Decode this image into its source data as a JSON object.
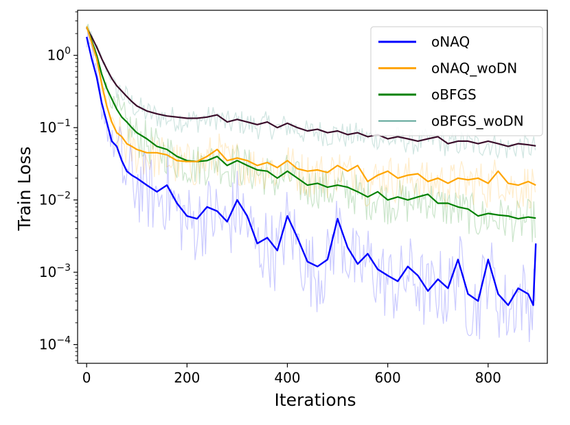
{
  "chart_data": {
    "type": "line",
    "title": "",
    "xlabel": "Iterations",
    "ylabel": "Train Loss",
    "yscale": "log",
    "xlim": [
      -18,
      918
    ],
    "ylim": [
      5.5e-05,
      4.2
    ],
    "x_ticks": [
      0,
      200,
      400,
      600,
      800
    ],
    "x_tick_labels": [
      "0",
      "200",
      "400",
      "600",
      "800"
    ],
    "y_ticks": [
      1,
      0.1,
      0.01,
      0.001,
      0.0001
    ],
    "y_tick_labels": [
      {
        "base": "10",
        "exp": "0"
      },
      {
        "base": "10",
        "exp": "−1"
      },
      {
        "base": "10",
        "exp": "−2"
      },
      {
        "base": "10",
        "exp": "−3"
      },
      {
        "base": "10",
        "exp": "−4"
      }
    ],
    "grid": false,
    "legend_position": "top-right",
    "series": [
      {
        "name": "oNAQ",
        "color": "#0000ff",
        "x": [
          0,
          10,
          20,
          30,
          40,
          50,
          60,
          70,
          80,
          90,
          100,
          120,
          140,
          160,
          180,
          200,
          220,
          240,
          260,
          280,
          300,
          320,
          340,
          360,
          380,
          400,
          420,
          440,
          460,
          480,
          500,
          520,
          540,
          560,
          580,
          600,
          620,
          640,
          660,
          680,
          700,
          720,
          740,
          760,
          780,
          800,
          820,
          840,
          860,
          880,
          890,
          895
        ],
        "y": [
          1.8,
          0.9,
          0.5,
          0.22,
          0.12,
          0.065,
          0.055,
          0.035,
          0.025,
          0.022,
          0.02,
          0.016,
          0.013,
          0.016,
          0.009,
          0.006,
          0.0055,
          0.008,
          0.007,
          0.005,
          0.01,
          0.006,
          0.0025,
          0.003,
          0.002,
          0.006,
          0.003,
          0.0014,
          0.0012,
          0.0015,
          0.0055,
          0.0022,
          0.0013,
          0.0018,
          0.0011,
          0.0009,
          0.00075,
          0.0012,
          0.0009,
          0.00055,
          0.0008,
          0.0006,
          0.0015,
          0.0005,
          0.0004,
          0.0015,
          0.0005,
          0.00035,
          0.0006,
          0.0005,
          0.00035,
          0.0025
        ]
      },
      {
        "name": "oNAQ_woDN",
        "color": "#ffa500",
        "x": [
          0,
          10,
          20,
          30,
          40,
          50,
          60,
          70,
          80,
          90,
          100,
          120,
          140,
          160,
          180,
          200,
          220,
          240,
          260,
          280,
          300,
          320,
          340,
          360,
          380,
          400,
          420,
          440,
          460,
          480,
          500,
          520,
          540,
          560,
          580,
          600,
          620,
          640,
          660,
          680,
          700,
          720,
          740,
          760,
          780,
          800,
          820,
          840,
          860,
          880,
          895
        ],
        "y": [
          2.5,
          1.5,
          0.9,
          0.4,
          0.2,
          0.12,
          0.085,
          0.075,
          0.06,
          0.055,
          0.05,
          0.045,
          0.045,
          0.042,
          0.035,
          0.034,
          0.034,
          0.04,
          0.05,
          0.035,
          0.038,
          0.035,
          0.03,
          0.033,
          0.028,
          0.035,
          0.027,
          0.025,
          0.026,
          0.024,
          0.03,
          0.025,
          0.03,
          0.018,
          0.022,
          0.025,
          0.02,
          0.022,
          0.023,
          0.018,
          0.02,
          0.017,
          0.02,
          0.019,
          0.02,
          0.017,
          0.025,
          0.017,
          0.016,
          0.018,
          0.016
        ]
      },
      {
        "name": "oBFGS",
        "color": "#008000",
        "x": [
          0,
          10,
          20,
          30,
          40,
          50,
          60,
          70,
          80,
          90,
          100,
          120,
          140,
          160,
          180,
          200,
          220,
          240,
          260,
          280,
          300,
          320,
          340,
          360,
          380,
          400,
          420,
          440,
          460,
          480,
          500,
          520,
          540,
          560,
          580,
          600,
          620,
          640,
          660,
          680,
          700,
          720,
          740,
          760,
          780,
          800,
          820,
          840,
          860,
          880,
          895
        ],
        "y": [
          2.5,
          1.6,
          1.0,
          0.55,
          0.35,
          0.25,
          0.18,
          0.14,
          0.12,
          0.1,
          0.085,
          0.07,
          0.055,
          0.05,
          0.04,
          0.035,
          0.034,
          0.035,
          0.04,
          0.03,
          0.035,
          0.03,
          0.026,
          0.025,
          0.02,
          0.025,
          0.02,
          0.016,
          0.017,
          0.015,
          0.016,
          0.015,
          0.013,
          0.011,
          0.013,
          0.01,
          0.011,
          0.01,
          0.011,
          0.012,
          0.009,
          0.009,
          0.008,
          0.0075,
          0.006,
          0.0065,
          0.0062,
          0.006,
          0.0055,
          0.0058,
          0.0056
        ]
      },
      {
        "name": "oBFGS_woDN",
        "color": "#2e8b7a",
        "x": [
          0,
          10,
          20,
          30,
          40,
          50,
          60,
          70,
          80,
          90,
          100,
          120,
          140,
          160,
          180,
          200,
          220,
          240,
          260,
          280,
          300,
          320,
          340,
          360,
          380,
          400,
          420,
          440,
          460,
          480,
          500,
          520,
          540,
          560,
          580,
          600,
          620,
          640,
          660,
          680,
          700,
          720,
          740,
          760,
          780,
          800,
          820,
          840,
          860,
          880,
          895
        ],
        "y": [
          2.4,
          1.8,
          1.3,
          0.9,
          0.65,
          0.48,
          0.38,
          0.32,
          0.27,
          0.23,
          0.2,
          0.17,
          0.155,
          0.145,
          0.14,
          0.135,
          0.135,
          0.14,
          0.15,
          0.12,
          0.13,
          0.12,
          0.11,
          0.12,
          0.1,
          0.115,
          0.1,
          0.09,
          0.095,
          0.085,
          0.09,
          0.08,
          0.085,
          0.075,
          0.08,
          0.07,
          0.075,
          0.07,
          0.065,
          0.07,
          0.075,
          0.06,
          0.065,
          0.065,
          0.06,
          0.065,
          0.06,
          0.055,
          0.06,
          0.058,
          0.056
        ]
      }
    ]
  }
}
